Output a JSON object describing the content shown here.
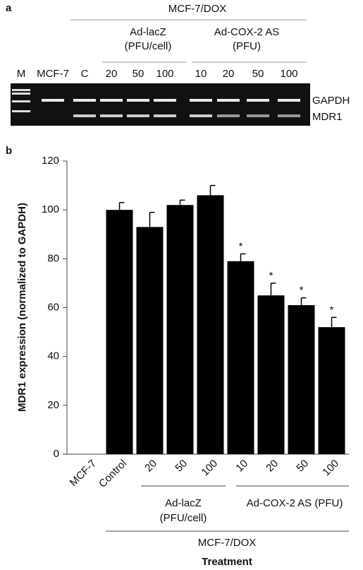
{
  "panel_a": {
    "label": "a",
    "group_label": "MCF-7/DOX",
    "subgroups": [
      {
        "name": "Ad-lacZ",
        "unit": "(PFU/cell)"
      },
      {
        "name": "Ad-COX-2 AS",
        "unit": "(PFU)"
      }
    ],
    "lanes": [
      "M",
      "MCF-7",
      "C",
      "20",
      "50",
      "100",
      "10",
      "20",
      "50",
      "100"
    ],
    "bands": [
      "GAPDH",
      "MDR1"
    ]
  },
  "chart_data": {
    "type": "bar",
    "label": "b",
    "y_label": "MDR1 expression (normalized to GAPDH)",
    "x_label": "Treatment",
    "categories": [
      "MCF-7",
      "Control",
      "20",
      "50",
      "100",
      "10",
      "20",
      "50",
      "100"
    ],
    "values": [
      0,
      100,
      93,
      102,
      106,
      79,
      65,
      61,
      52
    ],
    "errors": [
      null,
      3,
      6,
      2,
      4,
      3,
      5,
      3,
      4
    ],
    "significance": [
      null,
      null,
      null,
      null,
      null,
      "*",
      "*",
      "*",
      "*"
    ],
    "groups": [
      {
        "name": "Ad-lacZ",
        "unit": "(PFU/cell)"
      },
      {
        "name": "Ad-COX-2 AS (PFU)"
      }
    ],
    "outer_group": "MCF-7/DOX",
    "color": "#000000",
    "ylim": [
      0,
      120
    ],
    "yticks": [
      0,
      20,
      40,
      60,
      80,
      100,
      120
    ]
  }
}
